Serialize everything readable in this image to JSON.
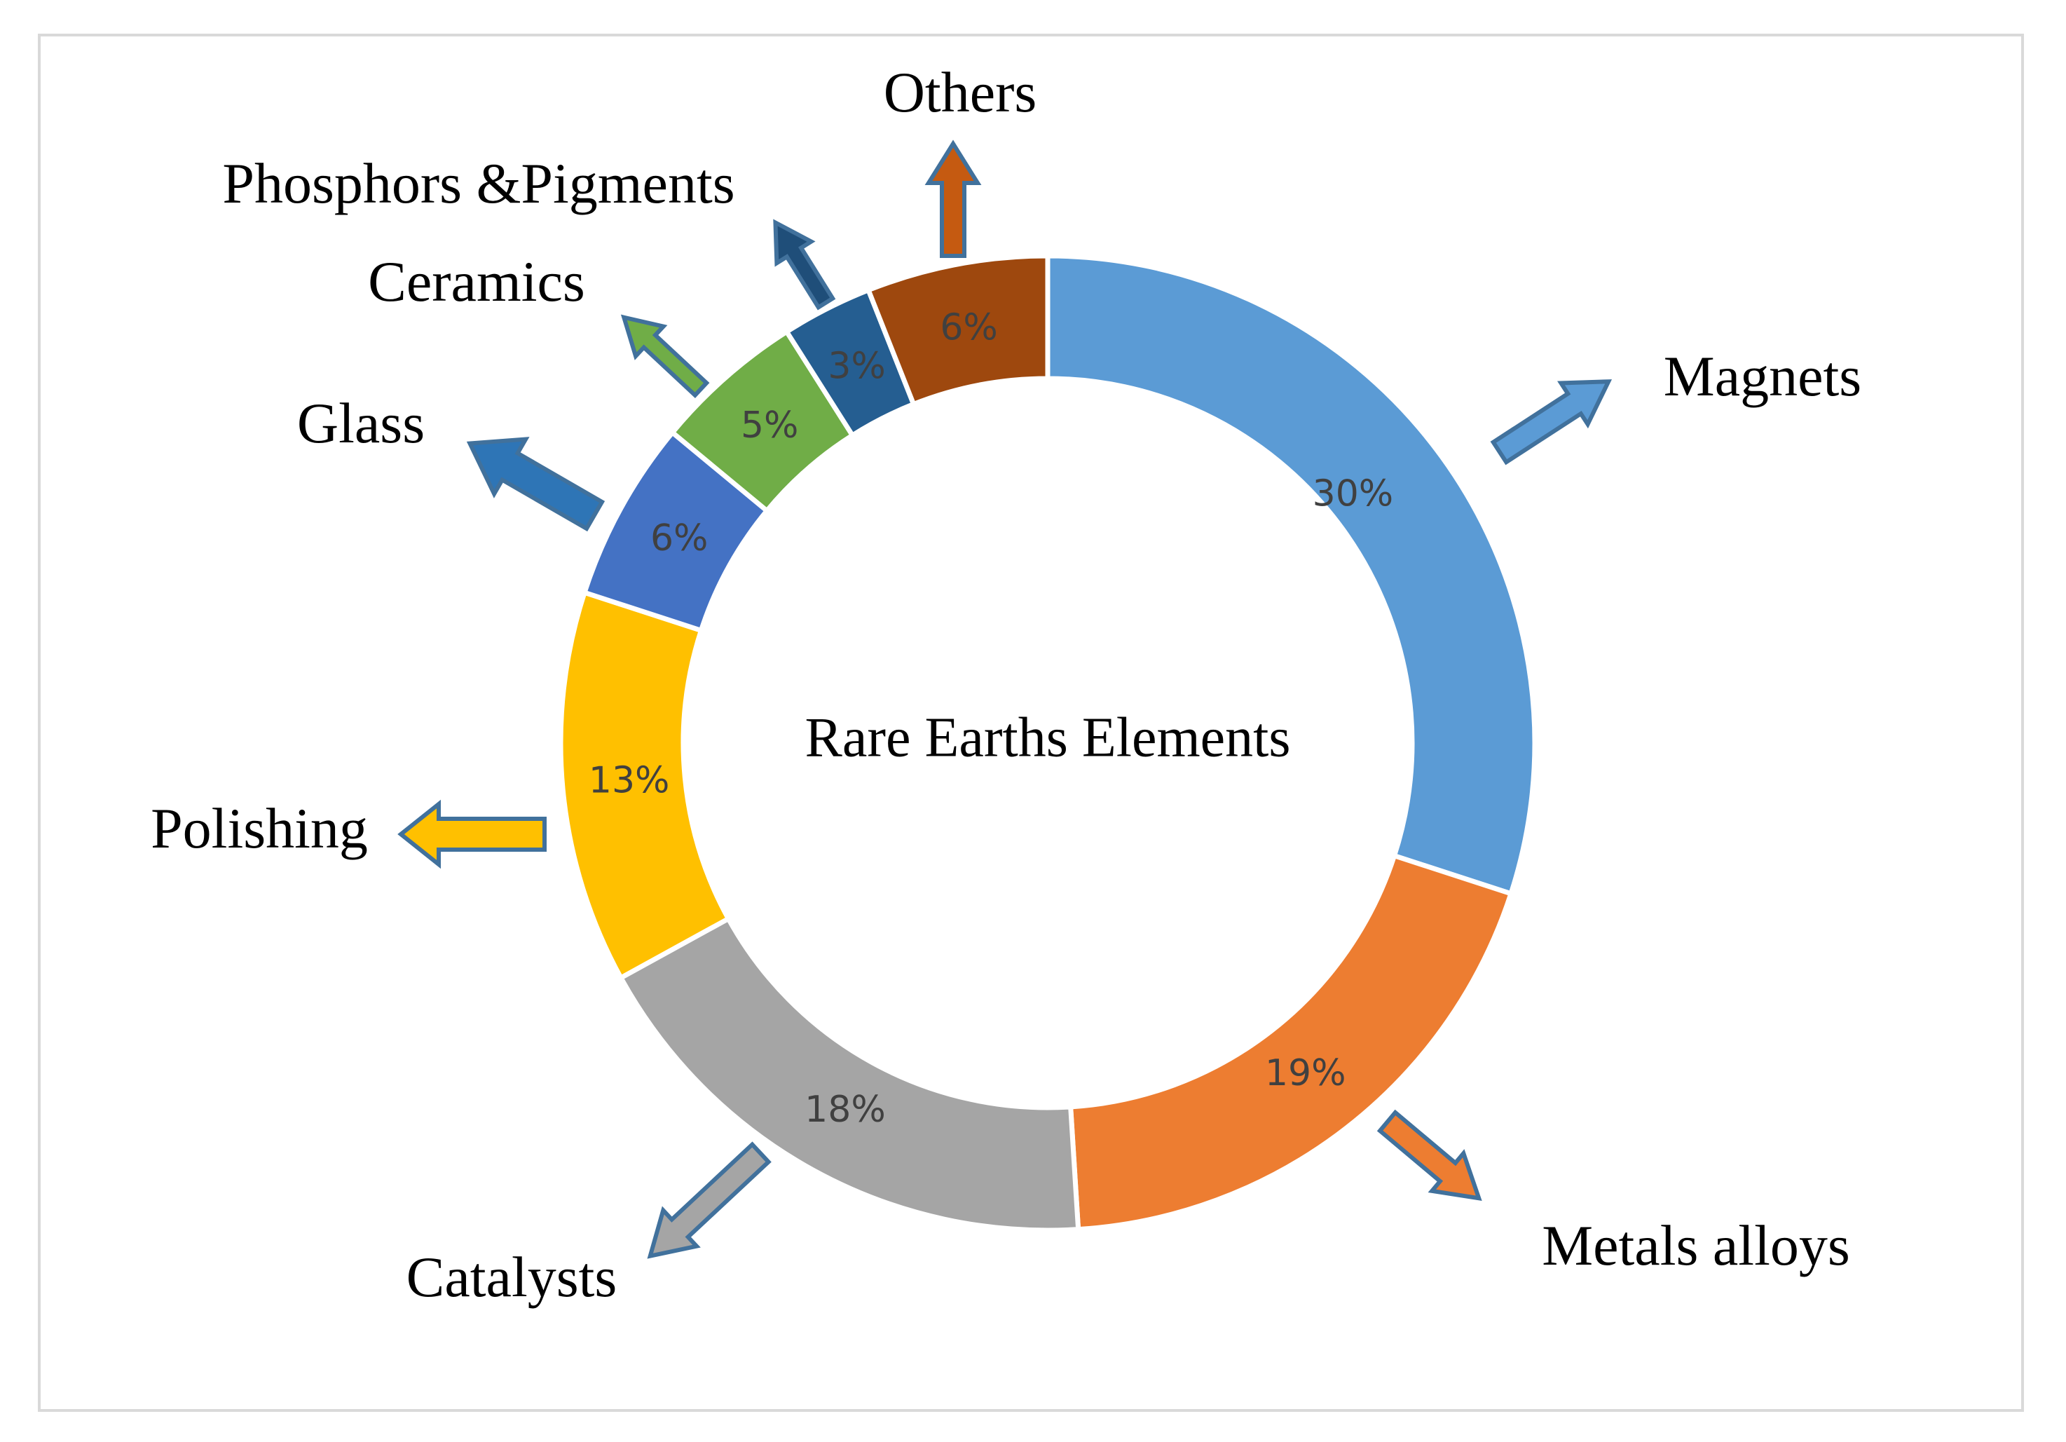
{
  "chart_data": {
    "type": "pie",
    "variant": "donut",
    "center_label": "Rare Earths Elements",
    "slices": [
      {
        "category": "Magnets",
        "value": 30,
        "label": "30%",
        "color": "#5b9bd5"
      },
      {
        "category": "Metals alloys",
        "value": 19,
        "label": "19%",
        "color": "#ed7d31"
      },
      {
        "category": "Catalysts",
        "value": 18,
        "label": "18%",
        "color": "#a5a5a5"
      },
      {
        "category": "Polishing",
        "value": 13,
        "label": "13%",
        "color": "#ffc000"
      },
      {
        "category": "Glass",
        "value": 6,
        "label": "6%",
        "color": "#4472c4",
        "arrow_color": "#2e75b6"
      },
      {
        "category": "Ceramics",
        "value": 5,
        "label": "5%",
        "color": "#70ad47"
      },
      {
        "category": "Phosphors &Pigments",
        "value": 3,
        "label": "3%",
        "color": "#255e91",
        "arrow_color": "#1f4e79"
      },
      {
        "category": "Others",
        "value": 6,
        "label": "6%",
        "color": "#9e480e",
        "arrow_color": "#c55a11"
      }
    ]
  }
}
